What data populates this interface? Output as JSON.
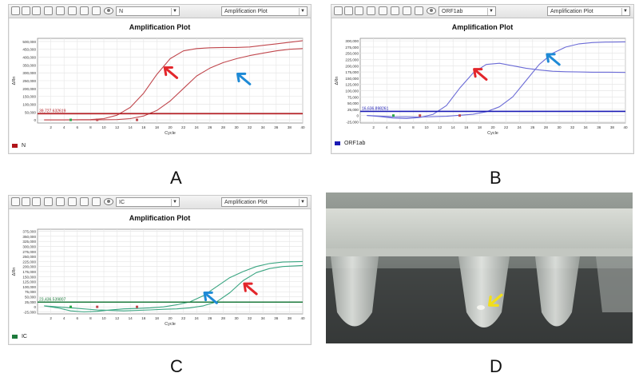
{
  "labels": {
    "a": "A",
    "b": "B",
    "c": "C",
    "d": "D"
  },
  "panels": [
    {
      "id": "A",
      "target": "N",
      "dropdown": "Amplification Plot",
      "legend": "N",
      "threshold_label": "39,727.632619"
    },
    {
      "id": "B",
      "target": "ORF1ab",
      "dropdown": "Amplification Plot",
      "legend": "ORF1ab",
      "threshold_label": "16,636.898261"
    },
    {
      "id": "C",
      "target": "IC",
      "dropdown": "Amplification Plot",
      "legend": "IC",
      "threshold_label": "23,436.539807"
    }
  ],
  "colors": {
    "red_arrow": "#e3262b",
    "blue_arrow": "#1e8ad6",
    "yellow_arrow": "#f2df1a",
    "a_curve": "#c0474d",
    "a_threshold": "#b0141a",
    "b_curve": "#6b6bd6",
    "b_threshold": "#1a1ab4",
    "c_curve": "#3aa581",
    "c_threshold": "#1d7a3c"
  },
  "chart_data": [
    {
      "type": "line",
      "title": "Amplification Plot",
      "xlabel": "Cycle",
      "ylabel": "ΔRn",
      "x_ticks": [
        2,
        4,
        6,
        8,
        10,
        12,
        14,
        16,
        18,
        20,
        22,
        24,
        26,
        28,
        30,
        32,
        34,
        36,
        38,
        40
      ],
      "y_ticks": [
        "500,000",
        "450,000",
        "400,000",
        "350,000",
        "300,000",
        "250,000",
        "200,000",
        "150,000",
        "100,000",
        "50,000",
        "0"
      ],
      "xlim": [
        0,
        40
      ],
      "ylim": [
        -20000,
        520000
      ],
      "threshold": 39727.632619,
      "series": [
        {
          "x": [
            1,
            4,
            8,
            10,
            12,
            14,
            16,
            18,
            20,
            22,
            24,
            26,
            28,
            30,
            32,
            34,
            36,
            38,
            40
          ],
          "values": [
            0,
            0,
            2000,
            8000,
            30000,
            80000,
            170000,
            290000,
            390000,
            440000,
            455000,
            460000,
            462000,
            462000,
            465000,
            475000,
            485000,
            495000,
            505000
          ]
        },
        {
          "x": [
            1,
            8,
            12,
            14,
            16,
            18,
            20,
            22,
            24,
            26,
            28,
            30,
            32,
            34,
            36,
            38,
            40
          ],
          "values": [
            0,
            0,
            2000,
            8000,
            25000,
            60000,
            120000,
            200000,
            280000,
            330000,
            365000,
            390000,
            410000,
            425000,
            440000,
            450000,
            455000
          ]
        }
      ],
      "annotations": [
        {
          "arrow": "red",
          "x": 19,
          "y": 340000
        },
        {
          "arrow": "blue",
          "x": 30,
          "y": 300000
        }
      ]
    },
    {
      "type": "line",
      "title": "Amplification Plot",
      "xlabel": "Cycle",
      "ylabel": "ΔRn",
      "x_ticks": [
        2,
        4,
        6,
        8,
        10,
        12,
        14,
        16,
        18,
        20,
        22,
        24,
        26,
        28,
        30,
        32,
        34,
        36,
        38,
        40
      ],
      "y_ticks": [
        "300,000",
        "275,000",
        "250,000",
        "225,000",
        "200,000",
        "175,000",
        "150,000",
        "125,000",
        "100,000",
        "75,000",
        "50,000",
        "25,000",
        "0",
        "-25,000"
      ],
      "xlim": [
        0,
        40
      ],
      "ylim": [
        -30000,
        310000
      ],
      "threshold": 16636.898261,
      "series": [
        {
          "x": [
            1,
            3,
            5,
            7,
            9,
            11,
            13,
            15,
            17,
            19,
            21,
            23,
            25,
            27,
            29,
            31,
            33,
            35,
            37,
            40
          ],
          "values": [
            0,
            -4000,
            -10000,
            -12000,
            -8000,
            5000,
            40000,
            110000,
            170000,
            205000,
            210000,
            200000,
            190000,
            183000,
            178000,
            176000,
            175000,
            174000,
            174000,
            173000
          ]
        },
        {
          "x": [
            1,
            5,
            9,
            13,
            17,
            19,
            21,
            23,
            25,
            27,
            29,
            31,
            33,
            35,
            37,
            40
          ],
          "values": [
            0,
            -5000,
            -6000,
            -3000,
            5000,
            15000,
            35000,
            75000,
            140000,
            205000,
            250000,
            275000,
            288000,
            293000,
            295000,
            296000
          ]
        }
      ],
      "annotations": [
        {
          "arrow": "red",
          "x": 17,
          "y": 190000
        },
        {
          "arrow": "blue",
          "x": 28,
          "y": 250000
        }
      ]
    },
    {
      "type": "line",
      "title": "Amplification Plot",
      "xlabel": "Cycle",
      "ylabel": "ΔRn",
      "x_ticks": [
        2,
        4,
        6,
        8,
        10,
        12,
        14,
        16,
        18,
        20,
        22,
        24,
        26,
        28,
        30,
        32,
        34,
        36,
        38,
        40
      ],
      "y_ticks": [
        "375,000",
        "350,000",
        "325,000",
        "300,000",
        "275,000",
        "250,000",
        "225,000",
        "200,000",
        "175,000",
        "150,000",
        "125,000",
        "100,000",
        "75,000",
        "50,000",
        "25,000",
        "0",
        "-25,000"
      ],
      "xlim": [
        0,
        40
      ],
      "ylim": [
        -35000,
        385000
      ],
      "threshold": 23436.539807,
      "series": [
        {
          "x": [
            1,
            3,
            5,
            7,
            9,
            11,
            13,
            15,
            17,
            19,
            21,
            23,
            25,
            27,
            29,
            31,
            33,
            35,
            37,
            40
          ],
          "values": [
            5000,
            -5000,
            -20000,
            -25000,
            -22000,
            -15000,
            -10000,
            -8000,
            -5000,
            0,
            10000,
            25000,
            55000,
            100000,
            145000,
            175000,
            200000,
            215000,
            222000,
            225000
          ]
        },
        {
          "x": [
            1,
            5,
            9,
            13,
            17,
            19,
            21,
            23,
            25,
            27,
            29,
            31,
            33,
            35,
            37,
            40
          ],
          "values": [
            5000,
            -5000,
            -15000,
            -20000,
            -15000,
            -12000,
            -10000,
            -5000,
            5000,
            25000,
            70000,
            130000,
            170000,
            190000,
            200000,
            205000
          ]
        }
      ],
      "annotations": [
        {
          "arrow": "blue",
          "x": 25,
          "y": 75000
        },
        {
          "arrow": "red",
          "x": 31,
          "y": 120000
        }
      ]
    }
  ],
  "photo": {
    "annotation": {
      "arrow": "yellow"
    }
  }
}
